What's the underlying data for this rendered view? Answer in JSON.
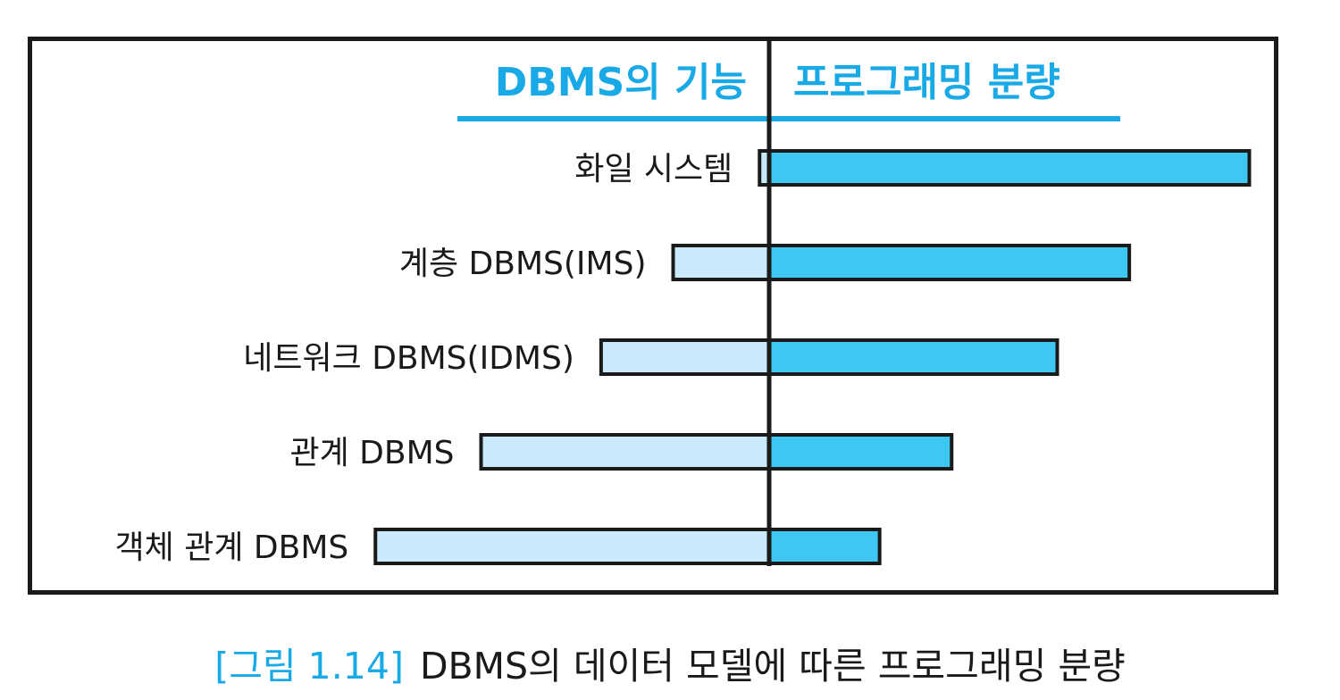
{
  "chart_data": {
    "type": "bar",
    "orientation": "horizontal-diverging",
    "left_header": "DBMS의 기능",
    "right_header": "프로그래밍 분량",
    "categories": [
      "화일 시스템",
      "계층 DBMS(IMS)",
      "네트워크 DBMS(IDMS)",
      "관계 DBMS",
      "객체 관계 DBMS"
    ],
    "series": [
      {
        "name": "DBMS의 기능",
        "side": "left",
        "values": [
          0.1,
          1.0,
          1.75,
          3.0,
          4.1
        ]
      },
      {
        "name": "프로그래밍 분량",
        "side": "right",
        "values": [
          5.0,
          3.75,
          3.0,
          1.9,
          1.15
        ]
      }
    ],
    "ylim": [
      0,
      5
    ],
    "grid": false,
    "colors": {
      "left": "#c8eafb",
      "right": "#3ec7f3",
      "outline": "#1a1a1a",
      "header": "#18a9e6"
    }
  },
  "caption": {
    "tag": "[그림 1.14]",
    "text": "DBMS의 데이터 모델에 따른 프로그래밍 분량"
  }
}
